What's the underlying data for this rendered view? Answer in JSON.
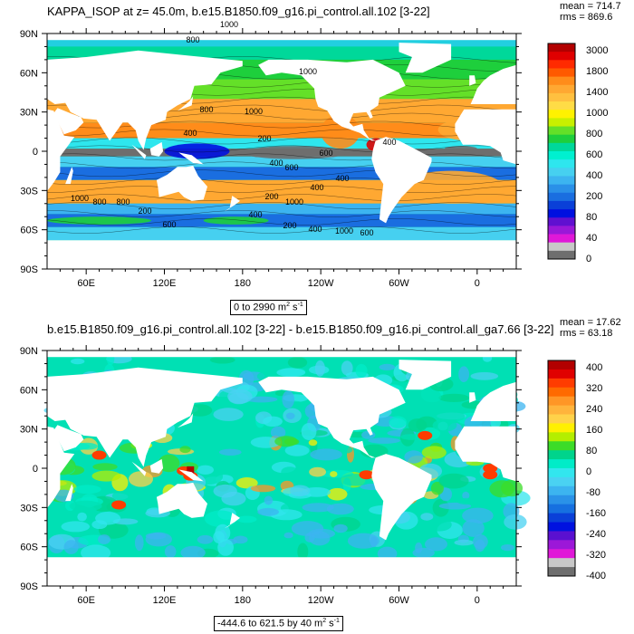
{
  "panels": [
    {
      "title": "KAPPA_ISOP at z=  45.0m, b.e15.B1850.f09_g16.pi_control.all.102 [3-22]",
      "stats": {
        "mean": "mean = 714.7",
        "rms": "rms = 869.6"
      },
      "range_label": "0 to 2990 m",
      "range_unit_sup": "2",
      "range_unit_tail": " s",
      "range_unit_sup2": "-1",
      "lat_labels": [
        "90N",
        "60N",
        "30N",
        "0",
        "30S",
        "60S",
        "90S"
      ],
      "lon_labels": [
        "60E",
        "120E",
        "180",
        "120W",
        "60W",
        "0"
      ],
      "colorbar": {
        "labels": [
          "3000",
          "1800",
          "1400",
          "1000",
          "800",
          "600",
          "400",
          "200",
          "80",
          "40",
          "0"
        ],
        "colors": [
          "#b20000",
          "#e00000",
          "#ff2a00",
          "#ff5a00",
          "#ff8c1a",
          "#ffa832",
          "#ffc040",
          "#ffdc46",
          "#fff200",
          "#c8f000",
          "#64e028",
          "#1ecf3c",
          "#00d89a",
          "#00f0d0",
          "#2ee6ee",
          "#46d0f0",
          "#3cb4f0",
          "#2a90e8",
          "#1a6ee0",
          "#0a40d8",
          "#0010e0",
          "#6010d0",
          "#9a18d8",
          "#e018d8",
          "#c8c8c8",
          "#6e6e6e"
        ]
      },
      "contour_labels": [
        "800",
        "1000",
        "1000",
        "800",
        "1000",
        "400",
        "200",
        "400",
        "600",
        "1000",
        "800",
        "800",
        "1000",
        "200",
        "600",
        "400",
        "200",
        "400",
        "1000",
        "400",
        "600",
        "200",
        "400",
        "600",
        "400"
      ]
    },
    {
      "title": "b.e15.B1850.f09_g16.pi_control.all.102 [3-22] - b.e15.B1850.f09_g16.pi_control.all_ga7.66 [3-22]",
      "stats": {
        "mean": "mean = 17.62",
        "rms": "rms = 63.18"
      },
      "range_label": "-444.6 to 621.5 by 40 m",
      "range_unit_sup": "2",
      "range_unit_tail": " s",
      "range_unit_sup2": "-1",
      "lat_labels": [
        "90N",
        "60N",
        "30N",
        "0",
        "30S",
        "60S",
        "90S"
      ],
      "lon_labels": [
        "60E",
        "120E",
        "180",
        "120W",
        "60W",
        "0"
      ],
      "colorbar": {
        "labels": [
          "400",
          "320",
          "240",
          "160",
          "80",
          "0",
          "-80",
          "-160",
          "-240",
          "-320",
          "-400"
        ],
        "colors": [
          "#b20000",
          "#e00000",
          "#ff3c00",
          "#ff6a00",
          "#ff9626",
          "#ffb43c",
          "#ffd24a",
          "#fff000",
          "#b4ee00",
          "#3cdc28",
          "#00d48c",
          "#00ecc8",
          "#32e6ee",
          "#4ad2f2",
          "#3cb4f0",
          "#2a92e8",
          "#1670e0",
          "#0a40d8",
          "#0012e0",
          "#5a10d0",
          "#9c18d8",
          "#e018d8",
          "#c8c8c8",
          "#6e6e6e"
        ]
      }
    }
  ],
  "chart_data": [
    {
      "type": "heatmap",
      "title": "KAPPA_ISOP at z=  45.0m, b.e15.B1850.f09_g16.pi_control.all.102 [3-22]",
      "variable": "KAPPA_ISOP",
      "depth": "45.0m",
      "mean": 714.7,
      "rms": 869.6,
      "min": 0,
      "max": 2990,
      "units": "m^2 s^-1",
      "color_levels": [
        0,
        40,
        80,
        200,
        400,
        600,
        800,
        1000,
        1400,
        1800,
        3000
      ],
      "lat_ticks": [
        "90N",
        "60N",
        "30N",
        "0",
        "30S",
        "60S",
        "90S"
      ],
      "lon_ticks": [
        "60E",
        "120E",
        "180",
        "120W",
        "60W",
        "0"
      ],
      "lon_range": [
        30,
        390
      ],
      "lat_range": [
        -90,
        90
      ]
    },
    {
      "type": "heatmap",
      "title": "b.e15.B1850.f09_g16.pi_control.all.102 [3-22] - b.e15.B1850.f09_g16.pi_control.all_ga7.66 [3-22]",
      "mean": 17.62,
      "rms": 63.18,
      "min": -444.6,
      "max": 621.5,
      "interval": 40,
      "units": "m^2 s^-1",
      "color_levels": [
        -400,
        -320,
        -240,
        -160,
        -80,
        0,
        80,
        160,
        240,
        320,
        400
      ],
      "lat_ticks": [
        "90N",
        "60N",
        "30N",
        "0",
        "30S",
        "60S",
        "90S"
      ],
      "lon_ticks": [
        "60E",
        "120E",
        "180",
        "120W",
        "60W",
        "0"
      ],
      "lon_range": [
        30,
        390
      ],
      "lat_range": [
        -90,
        90
      ]
    }
  ]
}
